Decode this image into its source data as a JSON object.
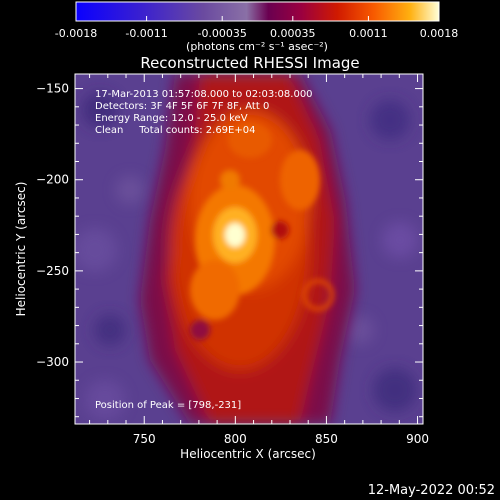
{
  "colorbar": {
    "ticks": [
      "-0.0018",
      "-0.0011",
      "-0.00035",
      "0.00035",
      "0.0011",
      "0.0018"
    ],
    "tick_values": [
      -0.0018,
      -0.0011,
      -0.00035,
      0.00035,
      0.0011,
      0.0018
    ],
    "unit_label": "(photons cm⁻² s⁻¹ asec⁻²)"
  },
  "chart_data": {
    "type": "heatmap",
    "title": "Reconstructed RHESSI Image",
    "xlabel": "Heliocentric X (arcsec)",
    "ylabel": "Heliocentric Y (arcsec)",
    "xlim": [
      712,
      903
    ],
    "ylim": [
      -334,
      -142
    ],
    "xticks": [
      750,
      800,
      850,
      900
    ],
    "yticks": [
      -300,
      -250,
      -200,
      -150
    ],
    "zlim": [
      -0.0018,
      0.0018
    ],
    "peak": [
      798,
      -231
    ],
    "annotations": [
      "17-Mar-2013 01:57:08.000 to 02:03:08.000",
      "Detectors: 3F 4F 5F 6F 7F 8F, Att 0",
      "Energy Range: 12.0 - 25.0 keV",
      "Clean     Total counts: 2.69E+04",
      "Position of Peak = [798,-231]"
    ]
  },
  "footer": {
    "timestamp": "12-May-2022 00:52"
  }
}
